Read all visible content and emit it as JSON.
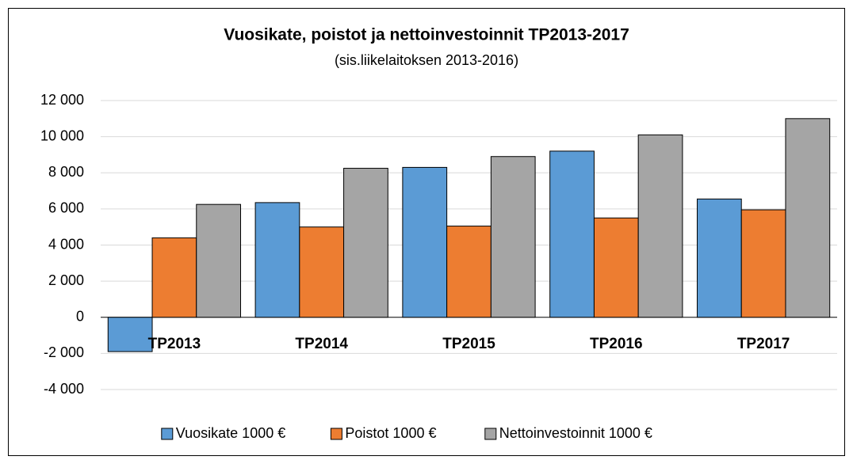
{
  "chart_data": {
    "type": "bar",
    "title": "Vuosikate, poistot ja nettoinvestoinnit TP2013-2017",
    "subtitle": "(sis.liikelaitoksen 2013-2016)",
    "categories": [
      "TP2013",
      "TP2014",
      "TP2015",
      "TP2016",
      "TP2017"
    ],
    "series": [
      {
        "name": "Vuosikate 1000 €",
        "color": "#5b9bd5",
        "values": [
          -1900,
          6350,
          8300,
          9200,
          6550
        ]
      },
      {
        "name": "Poistot 1000 €",
        "color": "#ed7d31",
        "values": [
          4400,
          5000,
          5050,
          5500,
          5950
        ]
      },
      {
        "name": "Nettoinvestoinnit 1000 €",
        "color": "#a5a5a5",
        "values": [
          6250,
          8250,
          8900,
          10100,
          11000
        ]
      }
    ],
    "ylim": [
      -4000,
      12000
    ],
    "yticks": [
      {
        "value": -4000,
        "label": "-4 000"
      },
      {
        "value": -2000,
        "label": "-2 000"
      },
      0,
      {
        "value": 2000,
        "label": "2 000"
      },
      {
        "value": 4000,
        "label": "4 000"
      },
      {
        "value": 6000,
        "label": "6 000"
      },
      {
        "value": 8000,
        "label": "8 000"
      },
      {
        "value": 10000,
        "label": "10 000"
      },
      {
        "value": 12000,
        "label": "12 000"
      }
    ],
    "grid": true,
    "legend": "bottom"
  }
}
